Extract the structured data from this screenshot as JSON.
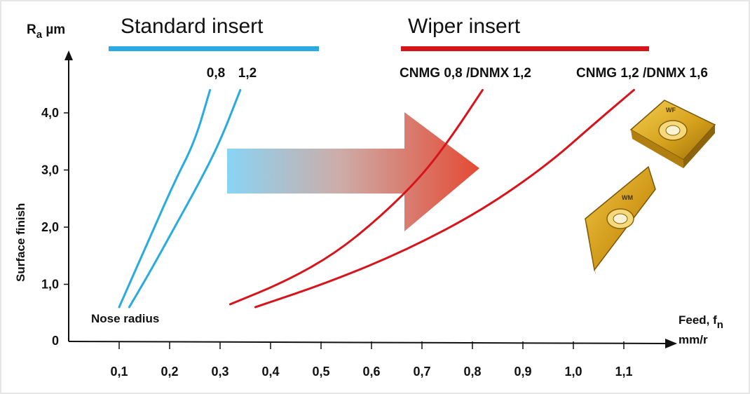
{
  "chart_data": {
    "type": "line",
    "title_left": "Standard insert",
    "title_right": "Wiper insert",
    "ylabel": "Surface finish",
    "ylabel_unit_main": "R",
    "ylabel_unit_sub": "a",
    "ylabel_unit_rest": " µm",
    "xlabel_main": "Feed, f",
    "xlabel_sub": "n",
    "xlabel_unit": "mm/r",
    "annotation": "Nose radius",
    "xlim": [
      0,
      1.2
    ],
    "ylim": [
      0,
      4.6
    ],
    "x_ticks": [
      "0,1",
      "0,2",
      "0,3",
      "0,4",
      "0,5",
      "0,6",
      "0,7",
      "0,8",
      "0,9",
      "1,0",
      "1,1"
    ],
    "y_ticks": [
      "0",
      "1,0",
      "2,0",
      "3,0",
      "4,0"
    ],
    "colors": {
      "standard": "#29abe2",
      "wiper": "#d7141b"
    },
    "series": [
      {
        "name": "0,8",
        "group": "standard",
        "points": [
          [
            0.1,
            0.6
          ],
          [
            0.13,
            1.2
          ],
          [
            0.17,
            2.0
          ],
          [
            0.21,
            2.8
          ],
          [
            0.25,
            3.5
          ],
          [
            0.28,
            4.4
          ]
        ]
      },
      {
        "name": "1,2",
        "group": "standard",
        "points": [
          [
            0.12,
            0.6
          ],
          [
            0.16,
            1.2
          ],
          [
            0.21,
            2.0
          ],
          [
            0.26,
            2.8
          ],
          [
            0.3,
            3.5
          ],
          [
            0.34,
            4.4
          ]
        ]
      },
      {
        "name": "CNMG 0,8 /DNMX 1,2",
        "group": "wiper",
        "points": [
          [
            0.32,
            0.65
          ],
          [
            0.43,
            1.05
          ],
          [
            0.53,
            1.55
          ],
          [
            0.62,
            2.2
          ],
          [
            0.7,
            2.9
          ],
          [
            0.76,
            3.6
          ],
          [
            0.82,
            4.4
          ]
        ]
      },
      {
        "name": "CNMG 1,2 /DNMX 1,6",
        "group": "wiper",
        "points": [
          [
            0.37,
            0.6
          ],
          [
            0.52,
            1.05
          ],
          [
            0.67,
            1.6
          ],
          [
            0.82,
            2.3
          ],
          [
            0.95,
            3.1
          ],
          [
            1.04,
            3.8
          ],
          [
            1.12,
            4.4
          ]
        ]
      }
    ]
  }
}
